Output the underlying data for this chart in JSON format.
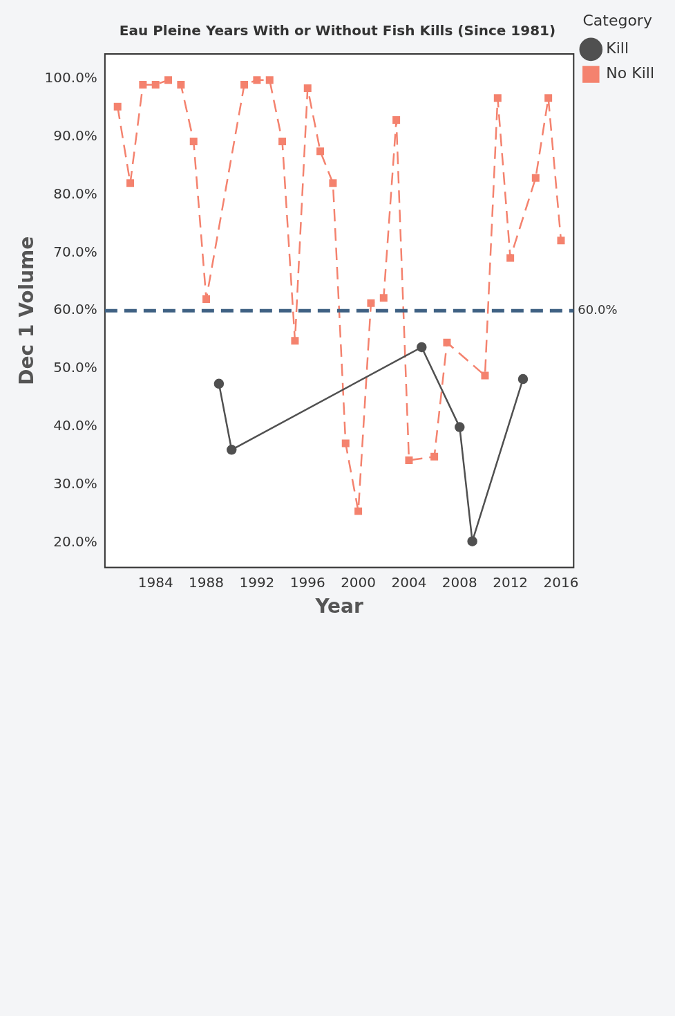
{
  "chart_data": {
    "type": "line",
    "title": "Eau Pleine Years With or Without Fish Kills (Since 1981)",
    "xlabel": "Year",
    "ylabel": "Dec 1 Volume",
    "legend_title": "Category",
    "legend": "top right",
    "grid": false,
    "xlim": [
      1980,
      2017
    ],
    "xticks": [
      1984,
      1988,
      1992,
      1996,
      2000,
      2004,
      2008,
      2012,
      2016
    ],
    "ylim": [
      15.7,
      104.3
    ],
    "yticks": [
      {
        "value": 20,
        "label": "20.0%"
      },
      {
        "value": 30,
        "label": "30.0%"
      },
      {
        "value": 40,
        "label": "40.0%"
      },
      {
        "value": 50,
        "label": "50.0%"
      },
      {
        "value": 60,
        "label": "60.0%"
      },
      {
        "value": 70,
        "label": "70.0%"
      },
      {
        "value": 80,
        "label": "80.0%"
      },
      {
        "value": 90,
        "label": "90.0%"
      },
      {
        "value": 100,
        "label": "100.0%"
      }
    ],
    "ref_lines": [
      {
        "axis": "y",
        "value": 60,
        "label": "60.0%",
        "color": "#3f6183",
        "line_style": "dashed"
      }
    ],
    "series": [
      {
        "name": "Kill",
        "color": "#505050",
        "marker": "circle",
        "line_style": "solid",
        "x": [
          1989,
          1990,
          2005,
          2008,
          2009,
          2013
        ],
        "values": [
          47.4,
          36.0,
          53.7,
          39.9,
          20.2,
          48.2
        ]
      },
      {
        "name": "No Kill",
        "color": "#f4826e",
        "marker": "square",
        "line_style": "dashed",
        "x": [
          1981,
          1982,
          1983,
          1984,
          1985,
          1986,
          1987,
          1988,
          1991,
          1992,
          1993,
          1994,
          1995,
          1996,
          1997,
          1998,
          1999,
          2000,
          2001,
          2002,
          2003,
          2004,
          2006,
          2007,
          2010,
          2011,
          2012,
          2014,
          2015,
          2016
        ],
        "values": [
          95.2,
          82.0,
          99.0,
          99.0,
          99.8,
          99.0,
          89.2,
          62.0,
          99.0,
          99.8,
          99.8,
          89.2,
          54.8,
          98.4,
          87.5,
          82.0,
          37.1,
          25.4,
          61.3,
          62.2,
          92.9,
          34.2,
          34.8,
          54.5,
          48.8,
          96.7,
          69.1,
          82.9,
          96.7,
          72.1
        ]
      }
    ]
  }
}
